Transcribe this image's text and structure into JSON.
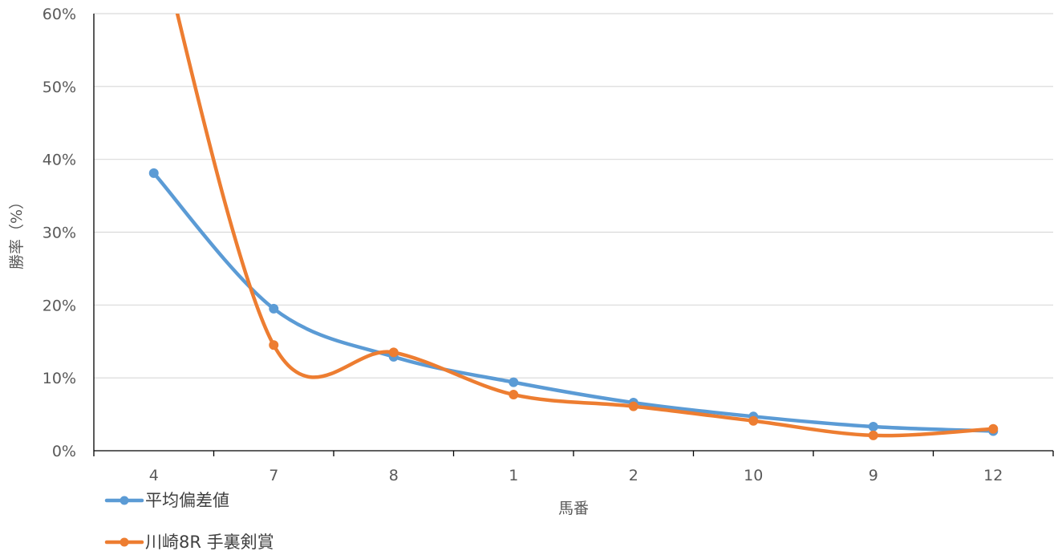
{
  "chart_data": {
    "type": "line",
    "smooth": true,
    "title": "",
    "xlabel": "馬番",
    "ylabel": "勝率（%）",
    "categories": [
      "4",
      "7",
      "8",
      "1",
      "2",
      "10",
      "9",
      "12"
    ],
    "ylim": [
      0,
      60
    ],
    "yticks": [
      0,
      10,
      20,
      30,
      40,
      50,
      60
    ],
    "ytick_labels": [
      "0%",
      "10%",
      "20%",
      "30%",
      "40%",
      "50%",
      "60%"
    ],
    "grid": true,
    "legend_position": "bottom-left",
    "series": [
      {
        "name": "平均偏差値",
        "color": "#5B9BD5",
        "values": [
          38.1,
          19.5,
          12.9,
          9.4,
          6.6,
          4.7,
          3.3,
          2.7
        ]
      },
      {
        "name": "川崎8R 手裏剣賞",
        "color": "#ED7D31",
        "values": [
          73.0,
          14.5,
          13.5,
          7.7,
          6.1,
          4.1,
          2.1,
          3.0
        ]
      }
    ]
  }
}
